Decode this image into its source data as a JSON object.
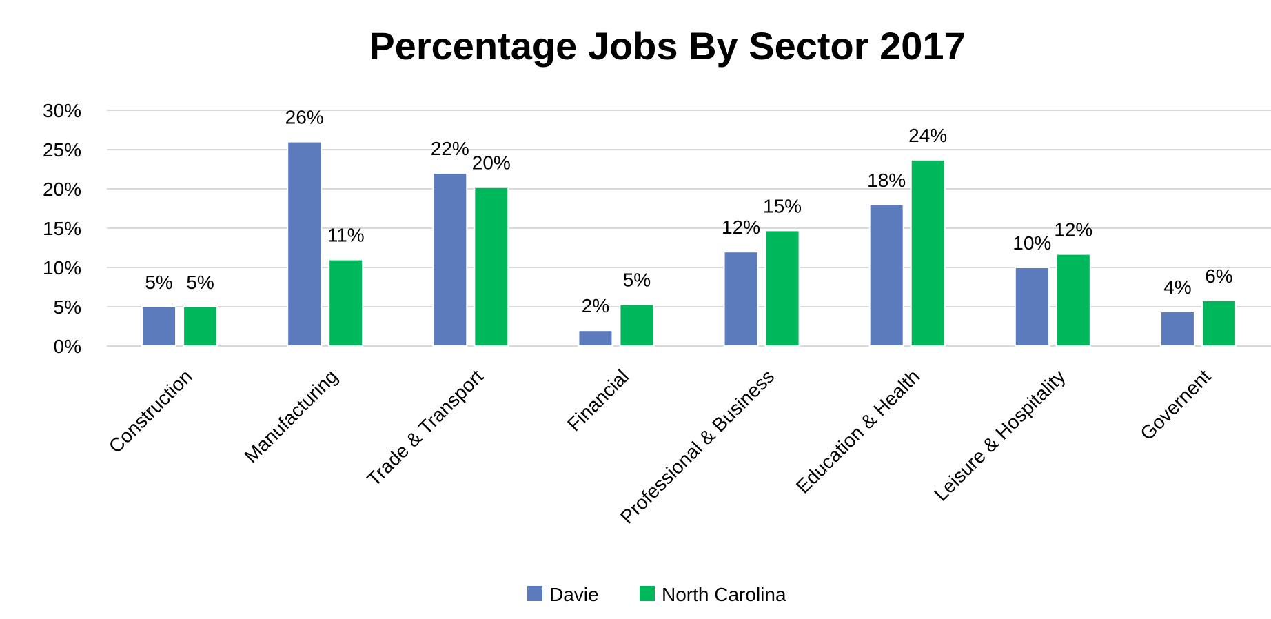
{
  "chart_data": {
    "type": "bar",
    "title": "Percentage Jobs By Sector 2017",
    "xlabel": "",
    "ylabel": "",
    "categories": [
      "Construction",
      "Manufacturing",
      "Trade & Transport",
      "Financial",
      "Professional & Business",
      "Education & Health",
      "Leisure & Hospitality",
      "Governent"
    ],
    "series": [
      {
        "name": "Davie",
        "color": "#5b7bbd",
        "values": [
          5,
          26,
          22,
          2,
          12,
          18,
          10,
          4.4
        ],
        "labels": [
          "5%",
          "26%",
          "22%",
          "2%",
          "12%",
          "18%",
          "10%",
          "4%"
        ]
      },
      {
        "name": "North Carolina",
        "color": "#00b85c",
        "values": [
          5,
          11,
          20.2,
          5.3,
          14.7,
          23.7,
          11.7,
          5.8
        ],
        "labels": [
          "5%",
          "11%",
          "20%",
          "5%",
          "15%",
          "24%",
          "12%",
          "6%"
        ]
      }
    ],
    "ylim": [
      0,
      30
    ],
    "yticks": [
      "0%",
      "5%",
      "10%",
      "15%",
      "20%",
      "25%",
      "30%"
    ],
    "grid": true,
    "legend_position": "bottom"
  }
}
